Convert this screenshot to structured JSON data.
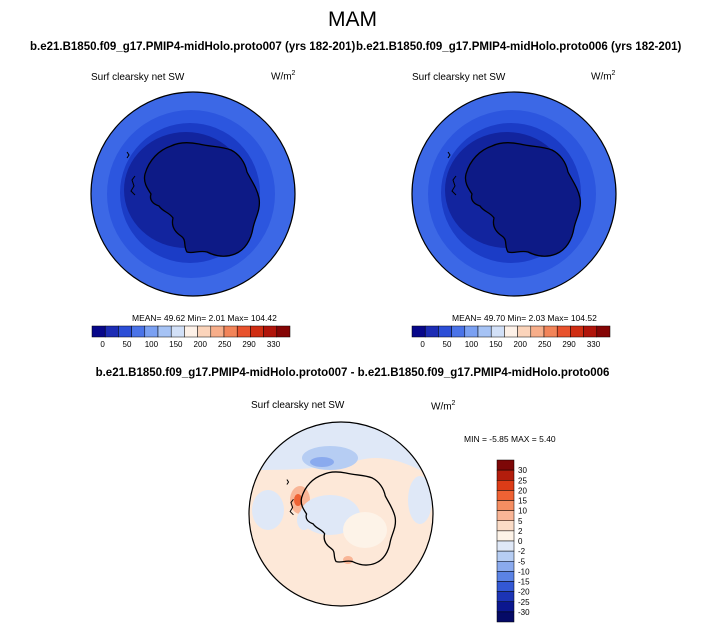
{
  "figure": {
    "title": "MAM",
    "left_case": "b.e21.B1850.f09_g17.PMIP4-midHolo.proto007 (yrs 182-201)",
    "right_case": "b.e21.B1850.f09_g17.PMIP4-midHolo.proto006 (yrs 182-201)",
    "diff_title": "b.e21.B1850.f09_g17.PMIP4-midHolo.proto007 - b.e21.B1850.f09_g17.PMIP4-midHolo.proto006"
  },
  "chart_data": [
    {
      "type": "heatmap",
      "projection": "south polar stereographic",
      "variable": "Surf clearsky net SW",
      "units": "W/m",
      "units_sup": "2",
      "stats": {
        "mean": "49.62",
        "min": "2.01",
        "max": "104.42"
      },
      "stats_text": "MEAN=  49.62  Min=    2.01  Max= 104.42",
      "colorbar": {
        "orientation": "horizontal",
        "tick_labels": [
          "0",
          "50",
          "100",
          "150",
          "200",
          "250",
          "290",
          "330"
        ],
        "colors": [
          "#08088a",
          "#1c2cb4",
          "#2c4ed6",
          "#4a73e8",
          "#7aa0f2",
          "#a6c3f5",
          "#d2e0f7",
          "#fdf1e8",
          "#fbd4bb",
          "#f7ae8a",
          "#f28459",
          "#e8522d",
          "#cf2d12",
          "#b0140a",
          "#850505"
        ]
      }
    },
    {
      "type": "heatmap",
      "projection": "south polar stereographic",
      "variable": "Surf clearsky net SW",
      "units": "W/m",
      "units_sup": "2",
      "stats": {
        "mean": "49.70",
        "min": "2.03",
        "max": "104.52"
      },
      "stats_text": "MEAN=  49.70  Min=    2.03  Max= 104.52",
      "colorbar": {
        "orientation": "horizontal",
        "tick_labels": [
          "0",
          "50",
          "100",
          "150",
          "200",
          "250",
          "290",
          "330"
        ],
        "colors": [
          "#08088a",
          "#1c2cb4",
          "#2c4ed6",
          "#4a73e8",
          "#7aa0f2",
          "#a6c3f5",
          "#d2e0f7",
          "#fdf1e8",
          "#fbd4bb",
          "#f7ae8a",
          "#f28459",
          "#e8522d",
          "#cf2d12",
          "#b0140a",
          "#850505"
        ]
      }
    },
    {
      "type": "heatmap",
      "projection": "south polar stereographic",
      "variable": "Surf clearsky net SW",
      "units": "W/m",
      "units_sup": "2",
      "stats": {
        "min": "-5.85",
        "max": "5.40"
      },
      "stats_text": "MIN =  -5.85 MAX =   5.40",
      "colorbar": {
        "orientation": "vertical",
        "tick_labels": [
          "30",
          "25",
          "20",
          "15",
          "10",
          "5",
          "2",
          "0",
          "-2",
          "-5",
          "-10",
          "-15",
          "-20",
          "-25",
          "-30"
        ],
        "colors": [
          "#7d0707",
          "#b21d0c",
          "#dc3c17",
          "#ef6234",
          "#f58e62",
          "#f9b596",
          "#fbdcc7",
          "#fdf3e8",
          "#dfe8f7",
          "#b6cdf3",
          "#8aaaee",
          "#5b83e5",
          "#3358d4",
          "#1c34b5",
          "#0b178f",
          "#050a66"
        ]
      }
    }
  ]
}
